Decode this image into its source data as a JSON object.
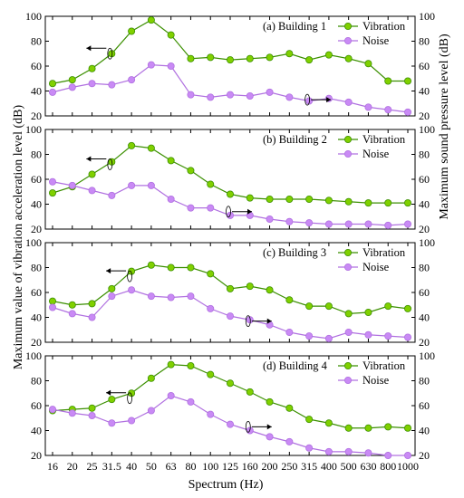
{
  "chart_data": {
    "type": "line",
    "x_ticks": [
      "16",
      "20",
      "25",
      "31.5",
      "40",
      "50",
      "63",
      "80",
      "100",
      "125",
      "160",
      "200",
      "250",
      "315",
      "400",
      "500",
      "630",
      "800",
      "1000"
    ],
    "xlabel": "Spectrum (Hz)",
    "ylabel_left": "Maximum value of vibration acceleration level (dB)",
    "ylabel_right": "Maximum sound pressure level (dB)",
    "colors": {
      "vibration": "#80d000",
      "vibration_line": "#3b8f00",
      "noise": "#c98af5",
      "noise_line": "#b070e0"
    },
    "panels": [
      {
        "title": "(a) Building 1",
        "ylim": [
          20,
          100
        ],
        "yticks": [
          "20",
          "40",
          "60",
          "80",
          "100"
        ],
        "series": [
          {
            "name": "Vibration",
            "values": [
              46,
              49,
              58,
              70,
              88,
              97,
              85,
              66,
              67,
              65,
              66,
              67,
              70,
              65,
              69,
              66,
              62,
              48,
              48
            ]
          },
          {
            "name": "Noise",
            "values": [
              39,
              43,
              46,
              45,
              49,
              61,
              60,
              37,
              35,
              37,
              36,
              39,
              35,
              32,
              34,
              31,
              27,
              25,
              23
            ]
          }
        ]
      },
      {
        "title": "(b) Building 2",
        "ylim": [
          20,
          100
        ],
        "yticks": [
          "20",
          "40",
          "60",
          "80",
          "100"
        ],
        "series": [
          {
            "name": "Vibration",
            "values": [
              49,
              54,
              64,
              74,
              87,
              85,
              75,
              67,
              56,
              48,
              45,
              44,
              44,
              44,
              43,
              42,
              41,
              41,
              41
            ]
          },
          {
            "name": "Noise",
            "values": [
              58,
              55,
              51,
              47,
              55,
              55,
              44,
              37,
              37,
              31,
              31,
              28,
              26,
              25,
              24,
              24,
              24,
              23,
              24
            ]
          }
        ]
      },
      {
        "title": "(c) Building 3",
        "ylim": [
          20,
          100
        ],
        "yticks": [
          "20",
          "40",
          "60",
          "80",
          "100"
        ],
        "series": [
          {
            "name": "Vibration",
            "values": [
              53,
              50,
              51,
              63,
              77,
              82,
              80,
              80,
              75,
              63,
              65,
              62,
              54,
              49,
              49,
              43,
              44,
              49,
              47
            ]
          },
          {
            "name": "Noise",
            "values": [
              48,
              43,
              40,
              57,
              62,
              57,
              56,
              57,
              47,
              41,
              38,
              34,
              28,
              25,
              23,
              28,
              26,
              25,
              24
            ]
          }
        ]
      },
      {
        "title": "(d) Building 4",
        "ylim": [
          20,
          100
        ],
        "yticks": [
          "20",
          "40",
          "60",
          "80",
          "100"
        ],
        "series": [
          {
            "name": "Vibration",
            "values": [
              56,
              57,
              58,
              65,
              70,
              82,
              93,
              92,
              85,
              78,
              71,
              63,
              58,
              49,
              46,
              42,
              42,
              43,
              42
            ]
          },
          {
            "name": "Noise",
            "values": [
              57,
              54,
              52,
              46,
              48,
              56,
              68,
              63,
              53,
              45,
              40,
              35,
              31,
              26,
              23,
              23,
              22,
              20,
              20
            ]
          }
        ]
      }
    ]
  }
}
